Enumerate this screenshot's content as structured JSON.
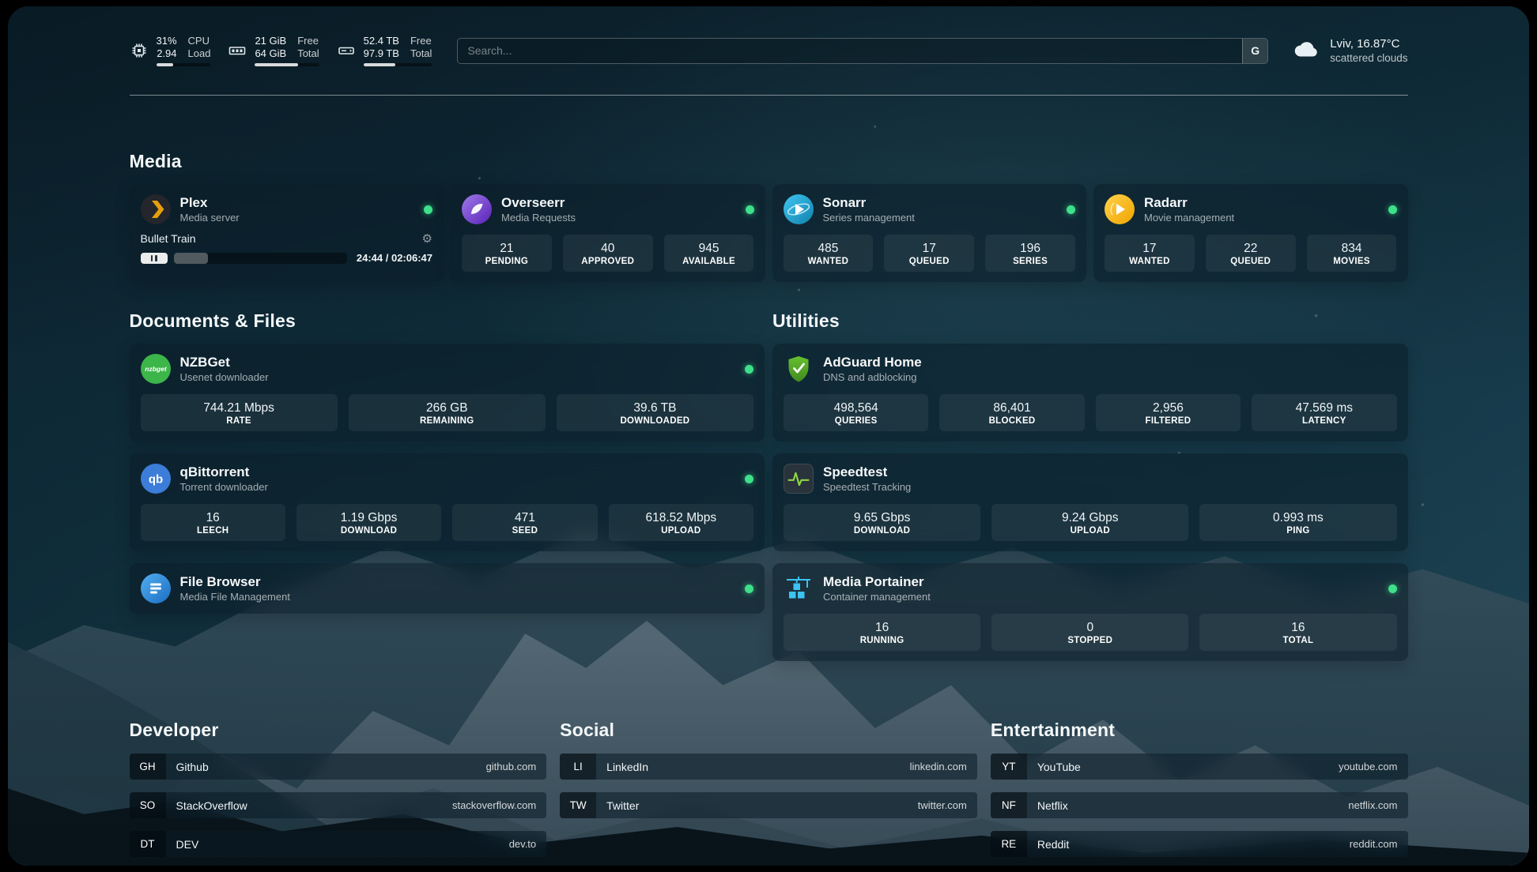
{
  "topbar": {
    "cpu": {
      "usage": "31%",
      "load": "2.94",
      "label_usage": "CPU",
      "label_load": "Load",
      "progress": 31
    },
    "memory": {
      "free": "21 GiB",
      "total": "64 GiB",
      "label_free": "Free",
      "label_total": "Total",
      "progress": 67
    },
    "disk": {
      "free": "52.4 TB",
      "total": "97.9 TB",
      "label_free": "Free",
      "label_total": "Total",
      "progress": 46
    },
    "search": {
      "placeholder": "Search...",
      "provider_label": "G"
    },
    "weather": {
      "location": "Lviv, 16.87°C",
      "condition": "scattered clouds"
    }
  },
  "sections": {
    "media": {
      "title": "Media"
    },
    "documents": {
      "title": "Documents & Files"
    },
    "utilities": {
      "title": "Utilities"
    },
    "developer": {
      "title": "Developer"
    },
    "social": {
      "title": "Social"
    },
    "entertainment": {
      "title": "Entertainment"
    }
  },
  "services": {
    "plex": {
      "name": "Plex",
      "subtitle": "Media server",
      "status": "online",
      "now_playing": {
        "title": "Bullet Train",
        "time": "24:44 / 02:06:47",
        "progress": 20
      }
    },
    "overseerr": {
      "name": "Overseerr",
      "subtitle": "Media Requests",
      "status": "online",
      "stats": [
        {
          "value": "21",
          "label": "PENDING"
        },
        {
          "value": "40",
          "label": "APPROVED"
        },
        {
          "value": "945",
          "label": "AVAILABLE"
        }
      ]
    },
    "sonarr": {
      "name": "Sonarr",
      "subtitle": "Series management",
      "status": "online",
      "stats": [
        {
          "value": "485",
          "label": "WANTED"
        },
        {
          "value": "17",
          "label": "QUEUED"
        },
        {
          "value": "196",
          "label": "SERIES"
        }
      ]
    },
    "radarr": {
      "name": "Radarr",
      "subtitle": "Movie management",
      "status": "online",
      "stats": [
        {
          "value": "17",
          "label": "WANTED"
        },
        {
          "value": "22",
          "label": "QUEUED"
        },
        {
          "value": "834",
          "label": "MOVIES"
        }
      ]
    },
    "nzbget": {
      "name": "NZBGet",
      "subtitle": "Usenet downloader",
      "status": "online",
      "stats": [
        {
          "value": "744.21 Mbps",
          "label": "RATE"
        },
        {
          "value": "266 GB",
          "label": "REMAINING"
        },
        {
          "value": "39.6 TB",
          "label": "DOWNLOADED"
        }
      ]
    },
    "qbittorrent": {
      "name": "qBittorrent",
      "subtitle": "Torrent downloader",
      "status": "online",
      "stats": [
        {
          "value": "16",
          "label": "LEECH"
        },
        {
          "value": "1.19 Gbps",
          "label": "DOWNLOAD"
        },
        {
          "value": "471",
          "label": "SEED"
        },
        {
          "value": "618.52 Mbps",
          "label": "UPLOAD"
        }
      ]
    },
    "filebrowser": {
      "name": "File Browser",
      "subtitle": "Media File Management",
      "status": "online"
    },
    "adguard": {
      "name": "AdGuard Home",
      "subtitle": "DNS and adblocking",
      "stats": [
        {
          "value": "498,564",
          "label": "QUERIES"
        },
        {
          "value": "86,401",
          "label": "BLOCKED"
        },
        {
          "value": "2,956",
          "label": "FILTERED"
        },
        {
          "value": "47.569 ms",
          "label": "LATENCY"
        }
      ]
    },
    "speedtest": {
      "name": "Speedtest",
      "subtitle": "Speedtest Tracking",
      "stats": [
        {
          "value": "9.65 Gbps",
          "label": "DOWNLOAD"
        },
        {
          "value": "9.24 Gbps",
          "label": "UPLOAD"
        },
        {
          "value": "0.993 ms",
          "label": "PING"
        }
      ]
    },
    "portainer": {
      "name": "Media Portainer",
      "subtitle": "Container management",
      "status": "online",
      "stats": [
        {
          "value": "16",
          "label": "RUNNING"
        },
        {
          "value": "0",
          "label": "STOPPED"
        },
        {
          "value": "16",
          "label": "TOTAL"
        }
      ]
    }
  },
  "bookmarks": {
    "developer": [
      {
        "abbr": "GH",
        "name": "Github",
        "url": "github.com"
      },
      {
        "abbr": "SO",
        "name": "StackOverflow",
        "url": "stackoverflow.com"
      },
      {
        "abbr": "DT",
        "name": "DEV",
        "url": "dev.to"
      }
    ],
    "social": [
      {
        "abbr": "LI",
        "name": "LinkedIn",
        "url": "linkedin.com"
      },
      {
        "abbr": "TW",
        "name": "Twitter",
        "url": "twitter.com"
      }
    ],
    "entertainment": [
      {
        "abbr": "YT",
        "name": "YouTube",
        "url": "youtube.com"
      },
      {
        "abbr": "NF",
        "name": "Netflix",
        "url": "netflix.com"
      },
      {
        "abbr": "RE",
        "name": "Reddit",
        "url": "reddit.com"
      }
    ]
  },
  "colors": {
    "status_online": "#3ee08a",
    "plex": "#e5a00d",
    "overseerr": "#7c3aed",
    "sonarr": "#29b8e8",
    "radarr": "#ffc230",
    "nzbget": "#3cb549",
    "qbittorrent": "#3b7dd8",
    "filebrowser": "#2d8cf0",
    "adguard": "#68c02f",
    "speedtest_line": "#8fd643",
    "portainer": "#3cc3f2"
  }
}
